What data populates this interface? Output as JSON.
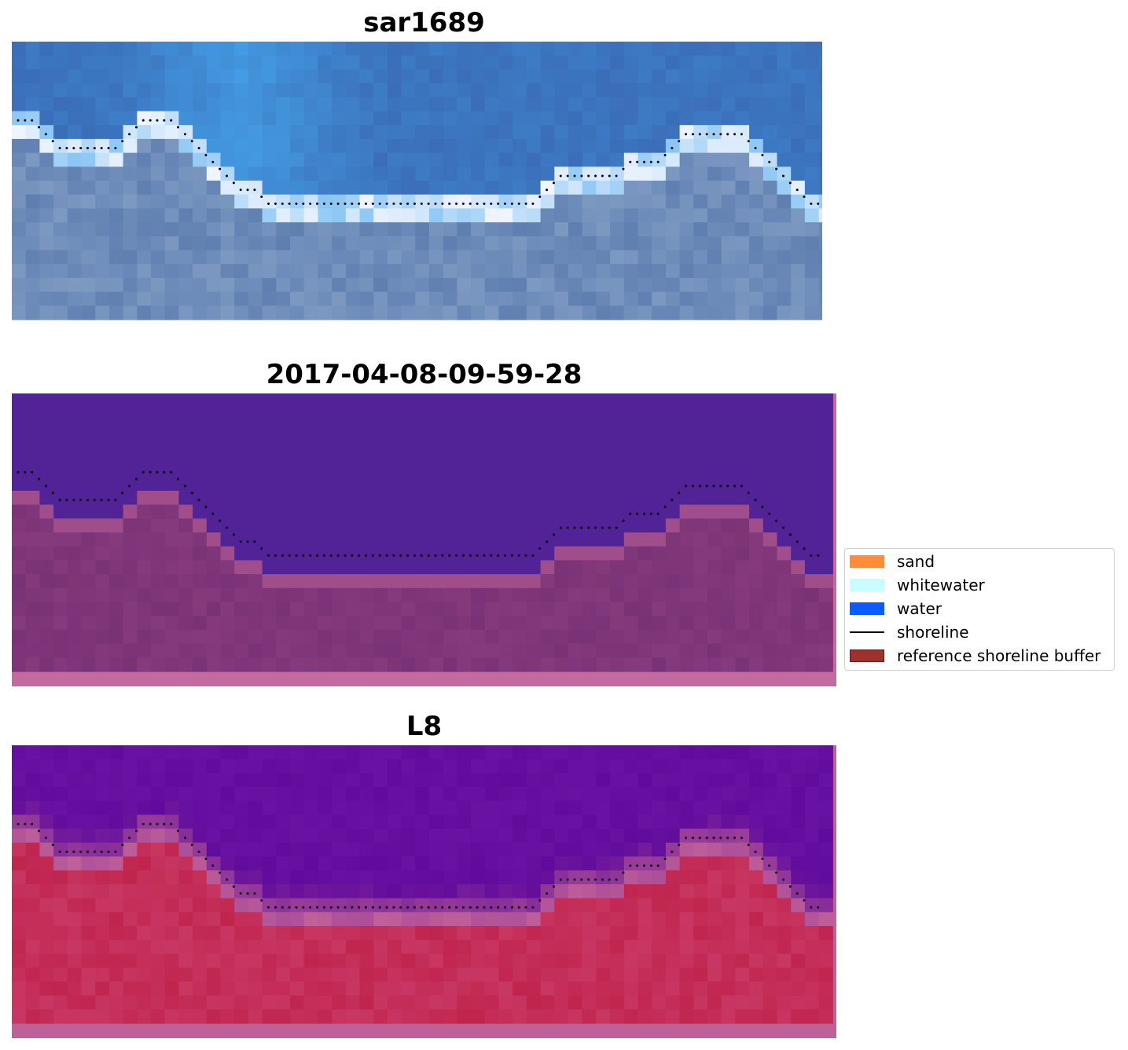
{
  "panels": [
    {
      "id": "rgb",
      "title": "sar1689"
    },
    {
      "id": "classified",
      "title": "2017-04-08-09-59-28"
    },
    {
      "id": "mndwi",
      "title": "L8"
    }
  ],
  "legend": {
    "items": [
      {
        "label": "sand",
        "color": "#ff8c3a",
        "kind": "patch"
      },
      {
        "label": "whitewater",
        "color": "#c9fcfc",
        "kind": "patch"
      },
      {
        "label": "water",
        "color": "#0a5cff",
        "kind": "patch"
      },
      {
        "label": "shoreline",
        "color": "#000000",
        "kind": "line"
      },
      {
        "label": "reference shoreline buffer",
        "color": "#a0302c",
        "kind": "patch"
      }
    ]
  },
  "colors": {
    "rgb_water_deep": "#3b6db8",
    "rgb_water_light": "#45a6ec",
    "rgb_land": "#5f7fb1",
    "rgb_whitewater": "#f2f6ff",
    "class_water": "#512396",
    "class_land": "#7a3276",
    "class_buffer_edge": "#c46aa0",
    "l8_water": "#610b9c",
    "l8_land": "#c0254e",
    "l8_transition": "#c06098"
  }
}
